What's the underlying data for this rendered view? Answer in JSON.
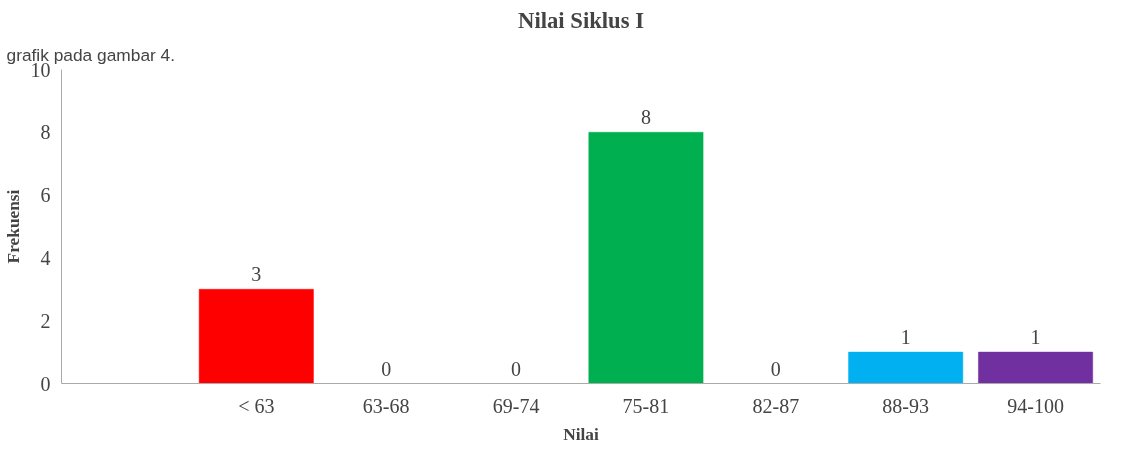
{
  "chart_data": {
    "type": "bar",
    "title": "Nilai Siklus I",
    "xlabel": "Nilai",
    "ylabel": "Frekuensi",
    "categories": [
      null,
      "< 63",
      "63-68",
      "69-74",
      "75-81",
      "82-87",
      "88-93",
      "94-100"
    ],
    "values": [
      null,
      3,
      0,
      0,
      8,
      0,
      1,
      1
    ],
    "colors": [
      "#ff0000",
      "#ff0000",
      "#ff0000",
      "#ff0000",
      "#00b050",
      "#00b050",
      "#00b0f0",
      "#7030a0"
    ],
    "value_labels": [
      null,
      "3",
      "0",
      "0",
      "8",
      "0",
      "1",
      "1"
    ],
    "ylim": [
      0,
      10
    ],
    "yticks": [
      0,
      2,
      4,
      6,
      8,
      10
    ],
    "grid": false,
    "annotations": [
      "grafik pada gambar 4."
    ]
  }
}
